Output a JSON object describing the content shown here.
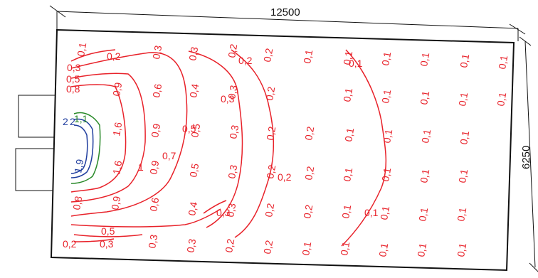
{
  "dimensions": {
    "width": "12500",
    "height": "6250"
  },
  "colors": {
    "red": "#e8222a",
    "blue": "#1f3d9e",
    "green": "#2a8a2a",
    "outline": "#111111"
  },
  "grid_rows": [
    [
      "0,3",
      "0,2",
      "0,1",
      "0,1",
      "0,1",
      "0,1",
      "0,1",
      "0,1"
    ],
    [
      "0,4",
      "0,3",
      "0,2",
      "0,1",
      "0,1",
      "0,1",
      "0,1",
      "0,1"
    ],
    [
      "0,5",
      "0,3",
      "0,2",
      "0,2",
      "0,1",
      "0,1",
      "0,1",
      "0,1"
    ],
    [
      "0,5",
      "0,3",
      "0,2",
      "0,2",
      "0,1",
      "0,1",
      "0,1",
      "0,1"
    ],
    [
      "0,4",
      "0,3",
      "0,2",
      "0,2",
      "0,1",
      "0,1",
      "0,1",
      "0,1"
    ],
    [
      "0,3",
      "0,2",
      "0,2",
      "0,1",
      "0,1",
      "0,1",
      "0,1",
      "0,1"
    ]
  ],
  "inner_labels": {
    "r0": [
      "0,1",
      "0,2",
      "0,3",
      "0,2",
      "0,2",
      "0,1"
    ],
    "r1": [
      "0,3",
      "0,5",
      "0,8",
      "0,9",
      "0,6",
      "0,3"
    ],
    "r2": [
      "1,6",
      "0,9",
      "0,5"
    ],
    "r3": [
      "1,6",
      "0,9",
      "0,7",
      "1",
      "0,2"
    ],
    "r4": [
      "0,8",
      "0,9",
      "0,6",
      "0,3",
      "0,1"
    ],
    "r5": [
      "0,5",
      "0,2",
      "0,3",
      "0,3"
    ],
    "blue_top": [
      "2",
      "2",
      "1,1"
    ],
    "blue_mid": "1,9"
  }
}
